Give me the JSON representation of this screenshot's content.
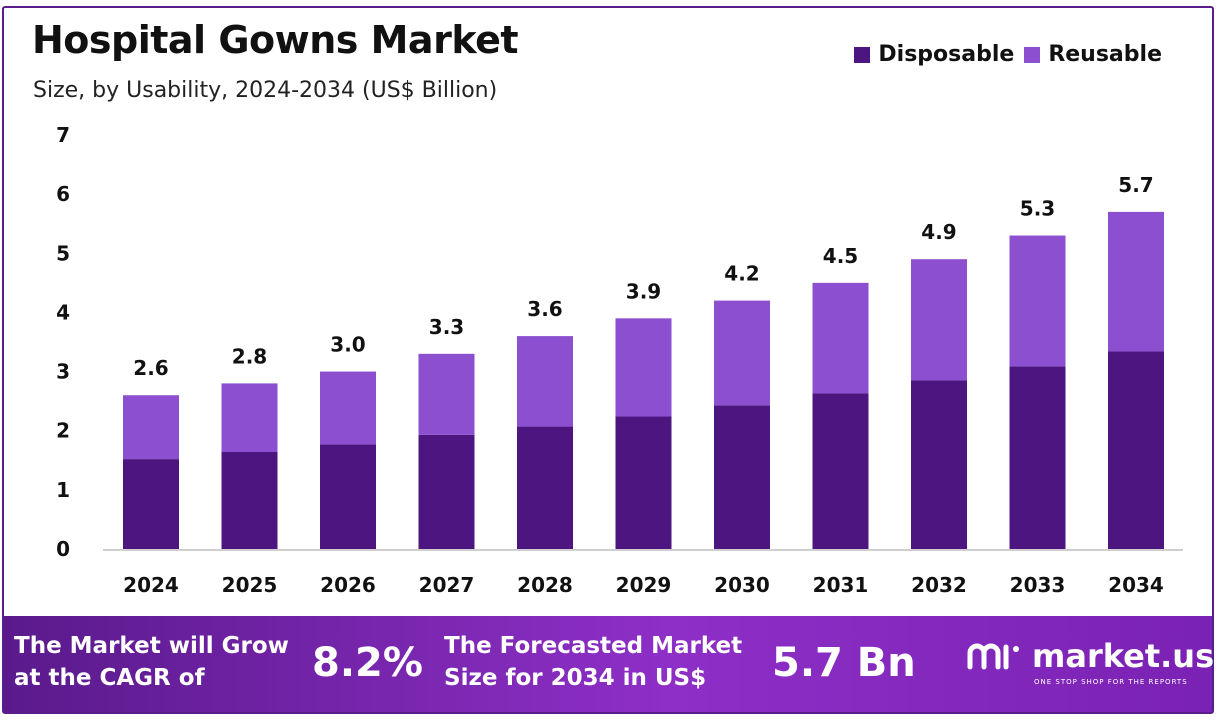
{
  "title": "Hospital Gowns Market",
  "subtitle": "Size, by Usability, 2024-2034 (US$ Billion)",
  "colors": {
    "disposable": "#4d1580",
    "reusable": "#8b4fd0",
    "border": "#5a1d8c"
  },
  "chart_data": {
    "type": "bar",
    "stacked": true,
    "categories": [
      "2024",
      "2025",
      "2026",
      "2027",
      "2028",
      "2029",
      "2030",
      "2031",
      "2032",
      "2033",
      "2034"
    ],
    "series": [
      {
        "name": "Disposable",
        "values": [
          1.52,
          1.64,
          1.77,
          1.93,
          2.07,
          2.24,
          2.43,
          2.63,
          2.85,
          3.09,
          3.34
        ]
      },
      {
        "name": "Reusable",
        "values": [
          1.08,
          1.16,
          1.23,
          1.37,
          1.53,
          1.66,
          1.77,
          1.87,
          2.05,
          2.21,
          2.36
        ]
      }
    ],
    "totals": [
      "2.6",
      "2.8",
      "3.0",
      "3.3",
      "3.6",
      "3.9",
      "4.2",
      "4.5",
      "4.9",
      "5.3",
      "5.7"
    ],
    "yticks": [
      "0",
      "1",
      "2",
      "3",
      "4",
      "5",
      "6",
      "7"
    ],
    "ylim": [
      0,
      7
    ],
    "grid": false,
    "legend_position": "top-right"
  },
  "footer": {
    "cagr_label": "The Market will Grow at the CAGR of",
    "cagr_value": "8.2%",
    "forecast_label": "The Forecasted Market Size for 2034 in US$",
    "forecast_value": "5.7 Bn",
    "brand_name": "market.us",
    "brand_tagline": "ONE STOP SHOP FOR THE REPORTS",
    "brand_icon": "market-us-logo-icon"
  }
}
